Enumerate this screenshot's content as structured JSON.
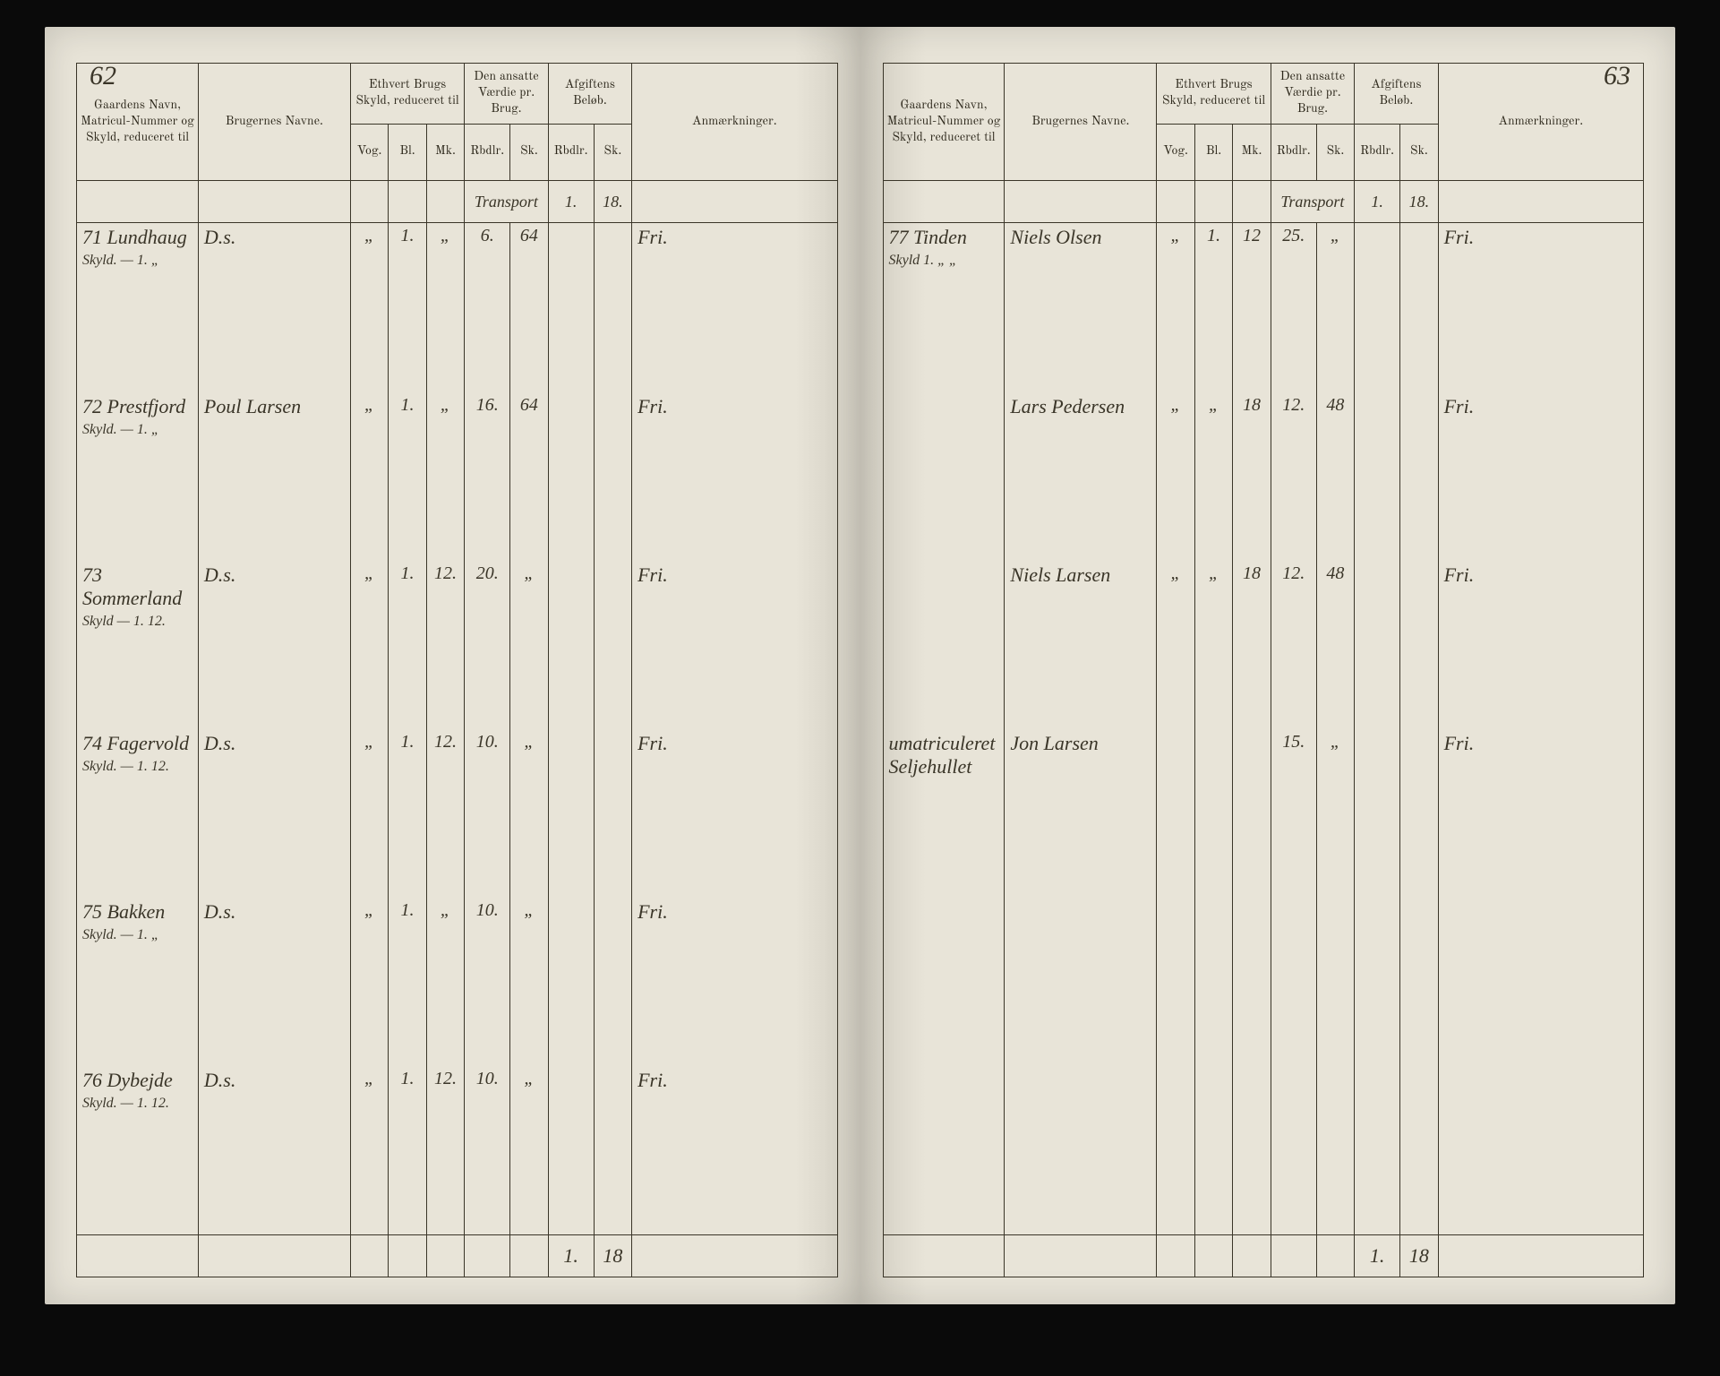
{
  "document": {
    "type": "ledger",
    "description": "Historical Norwegian land register / cadastre book spread",
    "paper_color": "#e8e4d8",
    "ink_color": "#3a3528",
    "rule_color": "#3a3528"
  },
  "left_page": {
    "page_number": "62",
    "headers": {
      "col1": "Gaardens Navn, Matricul-Nummer og Skyld, reduceret til",
      "col2": "Brugernes Navne.",
      "col3": "Ethvert Brugs Skyld, reduceret til",
      "col4": "Den ansatte Værdie pr. Brug.",
      "col5": "Afgiftens Beløb.",
      "col6": "Anmærkninger."
    },
    "subheaders": {
      "skyld": [
        "Vog.",
        "Bl.",
        "Mk."
      ],
      "vaerdie": [
        "Rbdlr.",
        "Sk."
      ],
      "afgift": [
        "Rbdlr.",
        "Sk."
      ],
      "transport": "Transport",
      "transport_afgift": [
        "1.",
        "18."
      ]
    },
    "rows": [
      {
        "gaard": "71 Lundhaug",
        "skyld_sub": "Skyld. — 1. „",
        "bruger": "D.s.",
        "skyld": [
          "„",
          "1.",
          "„"
        ],
        "vaerdie": [
          "6.",
          "64"
        ],
        "afgift": [
          "",
          ""
        ],
        "anm": "Fri."
      },
      {
        "gaard": "72 Prestfjord",
        "skyld_sub": "Skyld. — 1. „",
        "bruger": "Poul Larsen",
        "skyld": [
          "„",
          "1.",
          "„"
        ],
        "vaerdie": [
          "16.",
          "64"
        ],
        "afgift": [
          "",
          ""
        ],
        "anm": "Fri."
      },
      {
        "gaard": "73 Sommerland",
        "skyld_sub": "Skyld — 1. 12.",
        "bruger": "D.s.",
        "skyld": [
          "„",
          "1.",
          "12."
        ],
        "vaerdie": [
          "20.",
          "„"
        ],
        "afgift": [
          "",
          ""
        ],
        "anm": "Fri."
      },
      {
        "gaard": "74 Fagervold",
        "skyld_sub": "Skyld. — 1. 12.",
        "bruger": "D.s.",
        "skyld": [
          "„",
          "1.",
          "12."
        ],
        "vaerdie": [
          "10.",
          "„"
        ],
        "afgift": [
          "",
          ""
        ],
        "anm": "Fri."
      },
      {
        "gaard": "75 Bakken",
        "skyld_sub": "Skyld. — 1. „",
        "bruger": "D.s.",
        "skyld": [
          "„",
          "1.",
          "„"
        ],
        "vaerdie": [
          "10.",
          "„"
        ],
        "afgift": [
          "",
          ""
        ],
        "anm": "Fri."
      },
      {
        "gaard": "76 Dybejde",
        "skyld_sub": "Skyld. — 1. 12.",
        "bruger": "D.s.",
        "skyld": [
          "„",
          "1.",
          "12."
        ],
        "vaerdie": [
          "10.",
          "„"
        ],
        "afgift": [
          "",
          ""
        ],
        "anm": "Fri."
      }
    ],
    "footer": {
      "afgift": [
        "1.",
        "18"
      ]
    }
  },
  "right_page": {
    "page_number": "63",
    "headers": {
      "col1": "Gaardens Navn, Matricul-Nummer og Skyld, reduceret til",
      "col2": "Brugernes Navne.",
      "col3": "Ethvert Brugs Skyld, reduceret til",
      "col4": "Den ansatte Værdie pr. Brug.",
      "col5": "Afgiftens Beløb.",
      "col6": "Anmærkninger."
    },
    "subheaders": {
      "skyld": [
        "Vog.",
        "Bl.",
        "Mk."
      ],
      "vaerdie": [
        "Rbdlr.",
        "Sk."
      ],
      "afgift": [
        "Rbdlr.",
        "Sk."
      ],
      "transport": "Transport",
      "transport_afgift": [
        "1.",
        "18."
      ]
    },
    "rows": [
      {
        "gaard": "77 Tinden",
        "skyld_sub": "Skyld 1. „ „",
        "bruger": "Niels Olsen",
        "skyld": [
          "„",
          "1.",
          "12"
        ],
        "vaerdie": [
          "25.",
          "„"
        ],
        "afgift": [
          "",
          ""
        ],
        "anm": "Fri."
      },
      {
        "gaard": "",
        "skyld_sub": "",
        "bruger": "Lars Pedersen",
        "skyld": [
          "„",
          "„",
          "18"
        ],
        "vaerdie": [
          "12.",
          "48"
        ],
        "afgift": [
          "",
          ""
        ],
        "anm": "Fri."
      },
      {
        "gaard": "",
        "skyld_sub": "",
        "bruger": "Niels Larsen",
        "skyld": [
          "„",
          "„",
          "18"
        ],
        "vaerdie": [
          "12.",
          "48"
        ],
        "afgift": [
          "",
          ""
        ],
        "anm": "Fri."
      },
      {
        "gaard": "umatriculeret Seljehullet",
        "skyld_sub": "",
        "bruger": "Jon Larsen",
        "skyld": [
          "",
          "",
          ""
        ],
        "vaerdie": [
          "15.",
          "„"
        ],
        "afgift": [
          "",
          ""
        ],
        "anm": "Fri."
      },
      {
        "gaard": "",
        "skyld_sub": "",
        "bruger": "",
        "skyld": [
          "",
          "",
          ""
        ],
        "vaerdie": [
          "",
          ""
        ],
        "afgift": [
          "",
          ""
        ],
        "anm": ""
      },
      {
        "gaard": "",
        "skyld_sub": "",
        "bruger": "",
        "skyld": [
          "",
          "",
          ""
        ],
        "vaerdie": [
          "",
          ""
        ],
        "afgift": [
          "",
          ""
        ],
        "anm": ""
      }
    ],
    "footer": {
      "afgift": [
        "1.",
        "18"
      ]
    }
  }
}
